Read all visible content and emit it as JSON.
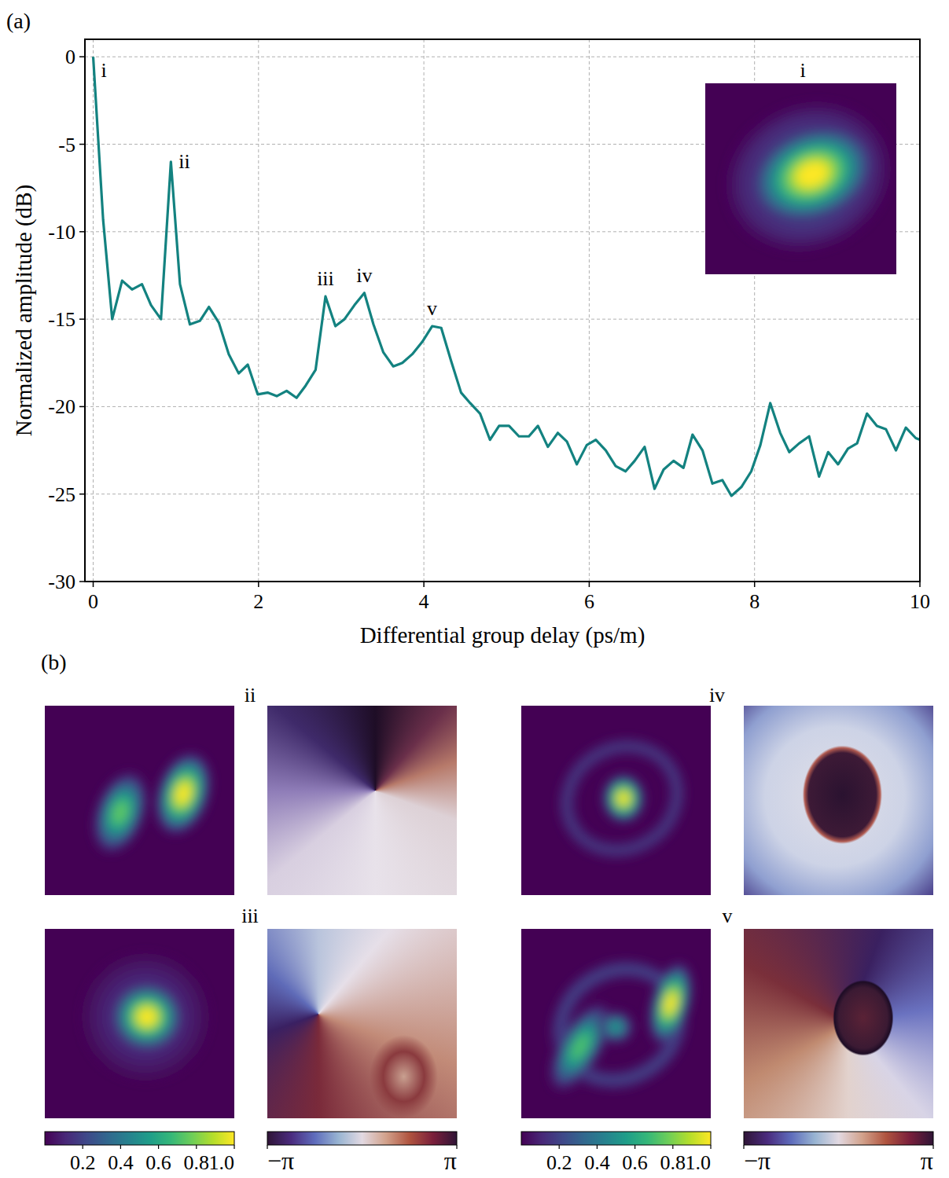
{
  "chart_data": {
    "type": "line",
    "panel_label": "(a)",
    "x_label": "Differential group delay (ps/m)",
    "y_label": "Normalized amplitude (dB)",
    "color": "#138280",
    "grid": true,
    "xlim": [
      -0.1,
      10
    ],
    "ylim": [
      -30,
      1
    ],
    "xticks": [
      0,
      2,
      4,
      6,
      8,
      10
    ],
    "yticks": [
      -30,
      -25,
      -20,
      -15,
      -10,
      -5,
      0
    ],
    "x": [
      0,
      0.12,
      0.23,
      0.35,
      0.47,
      0.59,
      0.7,
      0.82,
      0.94,
      1.05,
      1.17,
      1.29,
      1.4,
      1.52,
      1.64,
      1.76,
      1.87,
      1.99,
      2.11,
      2.22,
      2.34,
      2.46,
      2.57,
      2.69,
      2.81,
      2.93,
      3.04,
      3.16,
      3.28,
      3.39,
      3.51,
      3.63,
      3.74,
      3.86,
      3.98,
      4.1,
      4.21,
      4.33,
      4.45,
      4.56,
      4.68,
      4.8,
      4.91,
      5.03,
      5.15,
      5.27,
      5.38,
      5.5,
      5.62,
      5.73,
      5.85,
      5.97,
      6.08,
      6.2,
      6.32,
      6.44,
      6.55,
      6.67,
      6.79,
      6.9,
      7.02,
      7.14,
      7.25,
      7.37,
      7.49,
      7.61,
      7.72,
      7.84,
      7.96,
      8.07,
      8.19,
      8.31,
      8.42,
      8.54,
      8.66,
      8.78,
      8.89,
      9.01,
      9.13,
      9.24,
      9.36,
      9.48,
      9.59,
      9.71,
      9.83,
      9.95,
      10.06
    ],
    "values": [
      0,
      -9.3,
      -15.0,
      -12.8,
      -13.3,
      -13.0,
      -14.2,
      -15.0,
      -6.0,
      -13.0,
      -15.3,
      -15.1,
      -14.3,
      -15.2,
      -17.0,
      -18.1,
      -17.6,
      -19.3,
      -19.2,
      -19.4,
      -19.1,
      -19.5,
      -18.8,
      -17.9,
      -13.7,
      -15.4,
      -15.0,
      -14.2,
      -13.5,
      -15.3,
      -16.9,
      -17.7,
      -17.5,
      -17.0,
      -16.3,
      -15.4,
      -15.5,
      -17.4,
      -19.2,
      -19.8,
      -20.4,
      -21.9,
      -21.1,
      -21.1,
      -21.7,
      -21.7,
      -21.1,
      -22.3,
      -21.5,
      -22.0,
      -23.3,
      -22.2,
      -21.9,
      -22.5,
      -23.4,
      -23.7,
      -23.1,
      -22.3,
      -24.7,
      -23.6,
      -23.1,
      -23.5,
      -21.6,
      -22.5,
      -24.4,
      -24.2,
      -25.1,
      -24.6,
      -23.7,
      -22.2,
      -19.8,
      -21.5,
      -22.6,
      -22.1,
      -21.7,
      -24.0,
      -22.6,
      -23.3,
      -22.4,
      -22.1,
      -20.4,
      -21.1,
      -21.3,
      -22.5,
      -21.2,
      -21.8,
      -22.0
    ],
    "annotations": [
      {
        "text": "i",
        "x": 0,
        "y": 0
      },
      {
        "text": "ii",
        "x": 0.94,
        "y": -6.0
      },
      {
        "text": "iii",
        "x": 2.81,
        "y": -13.7
      },
      {
        "text": "iv",
        "x": 3.28,
        "y": -13.5
      },
      {
        "text": "v",
        "x": 4.1,
        "y": -15.4
      }
    ],
    "inset_label": "i"
  },
  "mode_maps": {
    "panel_label": "(b)",
    "labels": [
      "ii",
      "iii",
      "iv",
      "v"
    ],
    "intensity_colorbar": {
      "range": [
        0,
        1
      ],
      "ticks": [
        0.2,
        0.4,
        0.6,
        0.8,
        {
          "value": 1,
          "label": "1.0"
        }
      ]
    },
    "phase_colorbar": {
      "range": [
        -3.14159,
        3.14159
      ],
      "ticks": [
        {
          "value": -3.14159,
          "label": "−π"
        },
        {
          "value": 3.14159,
          "label": "π"
        }
      ]
    }
  }
}
